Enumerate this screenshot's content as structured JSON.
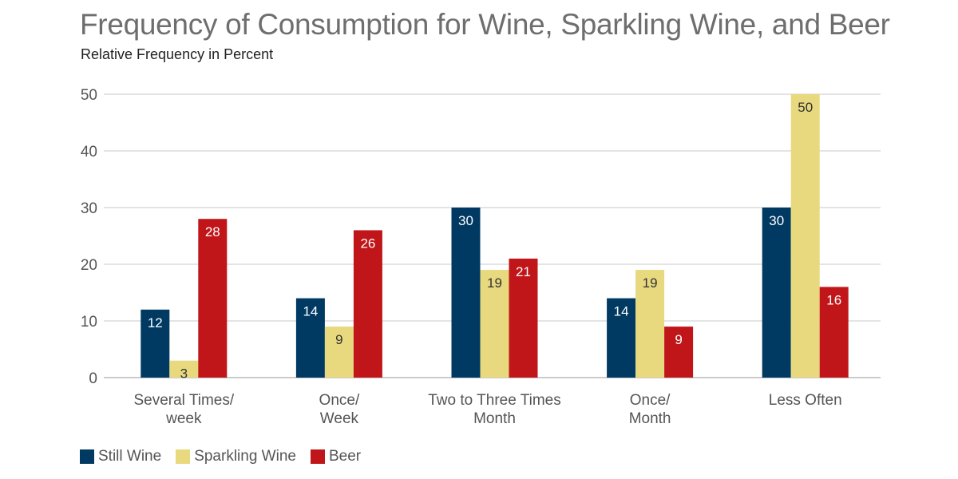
{
  "chart_data": {
    "type": "bar",
    "title": "Frequency of Consumption for Wine, Sparkling Wine, and Beer",
    "subtitle": "Relative Frequency in Percent",
    "categories": [
      [
        "Several Times/",
        "week"
      ],
      [
        "Once/",
        "Week"
      ],
      [
        "Two to Three Times",
        "Month"
      ],
      [
        "Once/",
        "Month"
      ],
      [
        "Less Often"
      ]
    ],
    "series": [
      {
        "name": "Still Wine",
        "color": "#003a63",
        "label_color": "#ffffff",
        "values": [
          12,
          14,
          30,
          14,
          30
        ]
      },
      {
        "name": "Sparkling Wine",
        "color": "#e8d97e",
        "label_color": "#333333",
        "values": [
          3,
          9,
          19,
          19,
          50
        ]
      },
      {
        "name": "Beer",
        "color": "#c0161a",
        "label_color": "#ffffff",
        "values": [
          28,
          26,
          21,
          9,
          16
        ]
      }
    ],
    "ylim": [
      0,
      50
    ],
    "yticks": [
      0,
      10,
      20,
      30,
      40,
      50
    ],
    "grid": true,
    "legend_position": "bottom-left"
  }
}
